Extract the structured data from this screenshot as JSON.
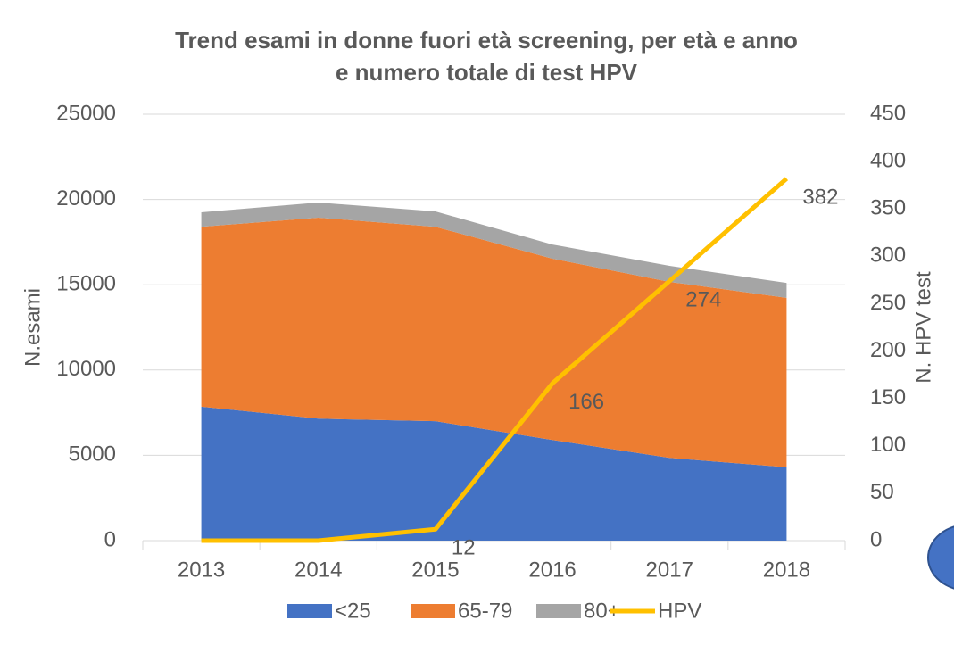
{
  "chart_data": {
    "type": "stacked-area-line",
    "title": [
      "Trend esami in donne fuori età screening, per età e anno",
      "e numero totale di test HPV"
    ],
    "y_label": "N.esami",
    "y2_label": "N. HPV test",
    "categories": [
      "2013",
      "2014",
      "2015",
      "2016",
      "2017",
      "2018"
    ],
    "series": [
      {
        "name": "<25",
        "color": "#4472c4",
        "kind": "area",
        "values": [
          7850,
          7150,
          7000,
          5900,
          4850,
          4300
        ]
      },
      {
        "name": "65-79",
        "color": "#ed7d31",
        "kind": "area",
        "values": [
          10550,
          11780,
          11400,
          10630,
          10320,
          9930
        ]
      },
      {
        "name": "80+",
        "color": "#a5a5a5",
        "kind": "area",
        "values": [
          850,
          890,
          900,
          830,
          940,
          880
        ]
      },
      {
        "name": "HPV",
        "color": "#ffc000",
        "kind": "line",
        "axis": "y2",
        "values": [
          0,
          0,
          12,
          166,
          274,
          382
        ],
        "value_labels": [
          null,
          null,
          "12",
          "166",
          "274",
          "382"
        ]
      }
    ],
    "ylim": [
      0,
      25000
    ],
    "yticks": [
      0,
      5000,
      10000,
      15000,
      20000,
      25000
    ],
    "y2lim": [
      0,
      450
    ],
    "y2ticks": [
      0,
      50,
      100,
      150,
      200,
      250,
      300,
      350,
      400,
      450
    ],
    "grid": true,
    "legend": "bottom"
  }
}
